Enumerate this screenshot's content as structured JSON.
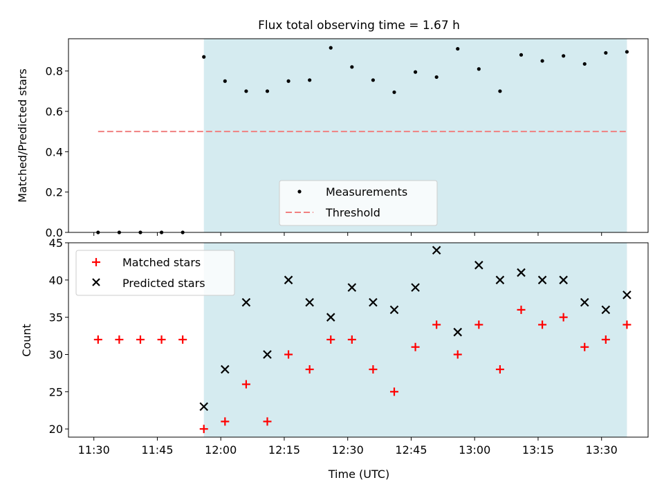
{
  "figure": {
    "title": "Flux total observing time = 1.67 h",
    "xlabel": "Time (UTC)",
    "x_ticks": [
      "11:30",
      "11:45",
      "12:00",
      "12:15",
      "12:30",
      "12:45",
      "13:00",
      "13:15",
      "13:30"
    ],
    "shade_color": "#d5ebf0"
  },
  "chart_data": [
    {
      "type": "scatter",
      "ylabel": "Matched/Predicted stars",
      "xlim": [
        "11:24",
        "13:41"
      ],
      "ylim": [
        0.0,
        0.96
      ],
      "y_ticks": [
        "0.0",
        "0.2",
        "0.4",
        "0.6",
        "0.8"
      ],
      "shaded_region": [
        "11:56",
        "13:36"
      ],
      "legend_position": "lower-center",
      "threshold": {
        "name": "Threshold",
        "y": 0.5,
        "x_range": [
          "11:31",
          "13:36"
        ],
        "color": "#f08080",
        "style": "dashed"
      },
      "series": [
        {
          "name": "Measurements",
          "marker": "dot",
          "color": "#000000",
          "x": [
            "11:31",
            "11:36",
            "11:41",
            "11:46",
            "11:51",
            "11:56",
            "12:01",
            "12:06",
            "12:11",
            "12:16",
            "12:21",
            "12:26",
            "12:31",
            "12:36",
            "12:41",
            "12:46",
            "12:51",
            "12:56",
            "13:01",
            "13:06",
            "13:11",
            "13:16",
            "13:21",
            "13:26",
            "13:31",
            "13:36"
          ],
          "y": [
            0.0,
            0.0,
            0.0,
            0.0,
            0.0,
            0.87,
            0.75,
            0.7,
            0.7,
            0.75,
            0.755,
            0.915,
            0.82,
            0.755,
            0.695,
            0.795,
            0.77,
            0.91,
            0.81,
            0.7,
            0.88,
            0.85,
            0.875,
            0.835,
            0.89,
            0.895
          ]
        }
      ]
    },
    {
      "type": "scatter",
      "ylabel": "Count",
      "xlim": [
        "11:24",
        "13:41"
      ],
      "ylim": [
        18.9,
        45.0
      ],
      "y_ticks": [
        "20",
        "25",
        "30",
        "35",
        "40",
        "45"
      ],
      "shaded_region": [
        "11:56",
        "13:36"
      ],
      "legend_position": "top-left",
      "series": [
        {
          "name": "Matched stars",
          "marker": "plus",
          "color": "#ff0000",
          "x": [
            "11:31",
            "11:36",
            "11:41",
            "11:46",
            "11:51",
            "11:56",
            "12:01",
            "12:06",
            "12:11",
            "12:16",
            "12:21",
            "12:26",
            "12:31",
            "12:36",
            "12:41",
            "12:46",
            "12:51",
            "12:56",
            "13:01",
            "13:06",
            "13:11",
            "13:16",
            "13:21",
            "13:26",
            "13:31",
            "13:36"
          ],
          "y": [
            32,
            32,
            32,
            32,
            32,
            20,
            21,
            26,
            21,
            30,
            28,
            32,
            32,
            28,
            25,
            31,
            34,
            30,
            34,
            28,
            36,
            34,
            35,
            31,
            32,
            34
          ]
        },
        {
          "name": "Predicted stars",
          "marker": "x",
          "color": "#000000",
          "x": [
            "11:56",
            "12:01",
            "12:06",
            "12:11",
            "12:16",
            "12:21",
            "12:26",
            "12:31",
            "12:36",
            "12:41",
            "12:46",
            "12:51",
            "12:56",
            "13:01",
            "13:06",
            "13:11",
            "13:16",
            "13:21",
            "13:26",
            "13:31",
            "13:36"
          ],
          "y": [
            23,
            28,
            37,
            30,
            40,
            37,
            35,
            39,
            37,
            36,
            39,
            44,
            33,
            42,
            40,
            41,
            40,
            40,
            37,
            36,
            38
          ]
        }
      ]
    }
  ]
}
